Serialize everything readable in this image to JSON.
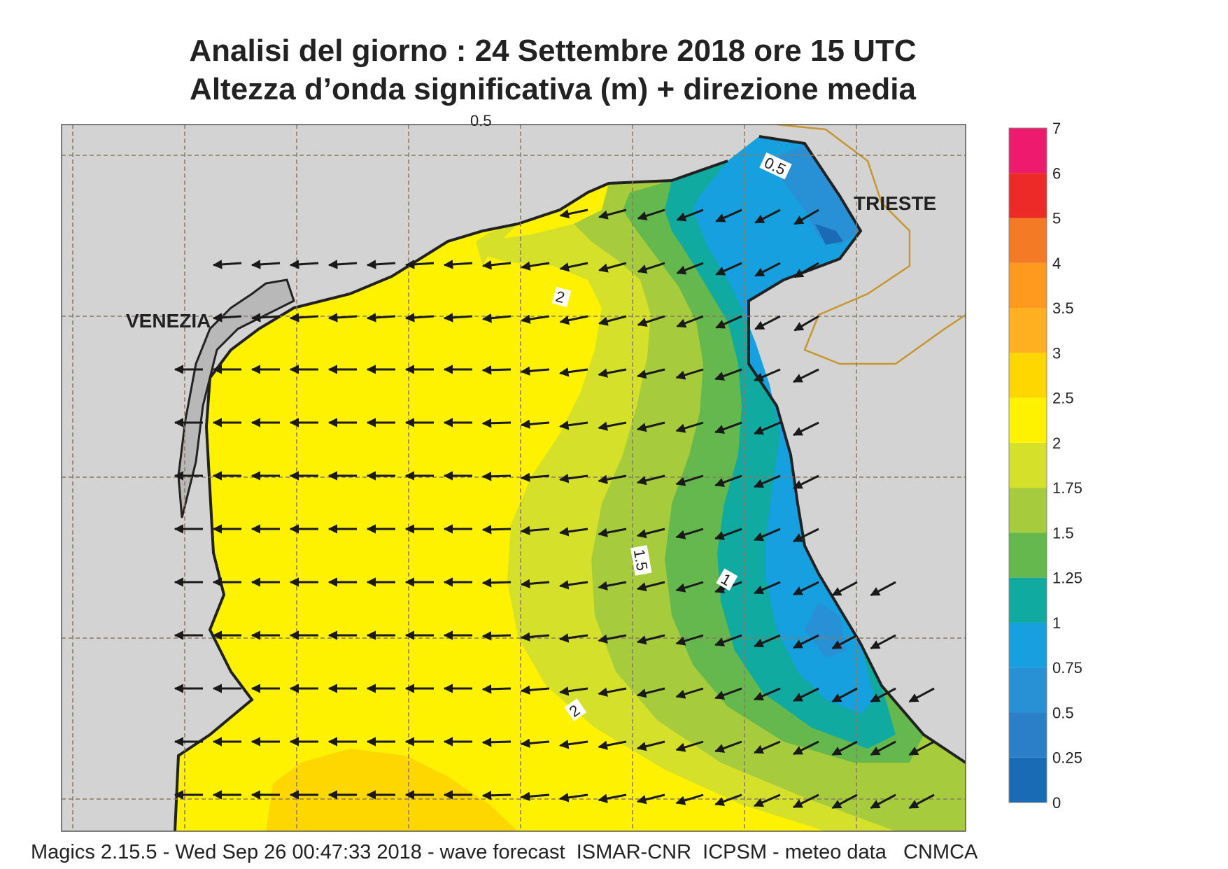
{
  "title_line1": "Analisi del giorno :  24 Settembre 2018   ore 15 UTC",
  "title_line2": "Altezza d’onda significativa (m) + direzione media",
  "footer": "Magics 2.15.5 - Wed Sep 26 00:47:33 2018 - wave forecast  ISMAR-CNR  ICPSM - meteo data   CNMCA",
  "cities": [
    {
      "label": "VENEZIA"
    },
    {
      "label": "TRIESTE"
    }
  ],
  "contour_labels": [
    "0.5",
    "0.5",
    "2",
    "1.5",
    "1",
    "2"
  ],
  "legend": {
    "levels": [
      "0",
      "0.25",
      "0.5",
      "0.75",
      "1",
      "1.25",
      "1.5",
      "1.75",
      "2",
      "2.5",
      "3",
      "3.5",
      "4",
      "5",
      "6",
      "7"
    ],
    "colors": [
      "#1a6bb5",
      "#2a7fc8",
      "#2891d6",
      "#17a0e0",
      "#10aaa0",
      "#65b84e",
      "#a6cc3e",
      "#d5e02a",
      "#fff200",
      "#ffd700",
      "#ffb020",
      "#ff9a1e",
      "#f47a25",
      "#ee2a28",
      "#ee1a6e"
    ]
  },
  "colors": {
    "land": "#d3d3d3",
    "sea_high": "#fff200",
    "sea_2_5": "#ffd700",
    "arrow": "#1a1a1a",
    "border": "#c8962e",
    "grid": "#8a7a60"
  },
  "wave_direction": "toward west / south-west"
}
